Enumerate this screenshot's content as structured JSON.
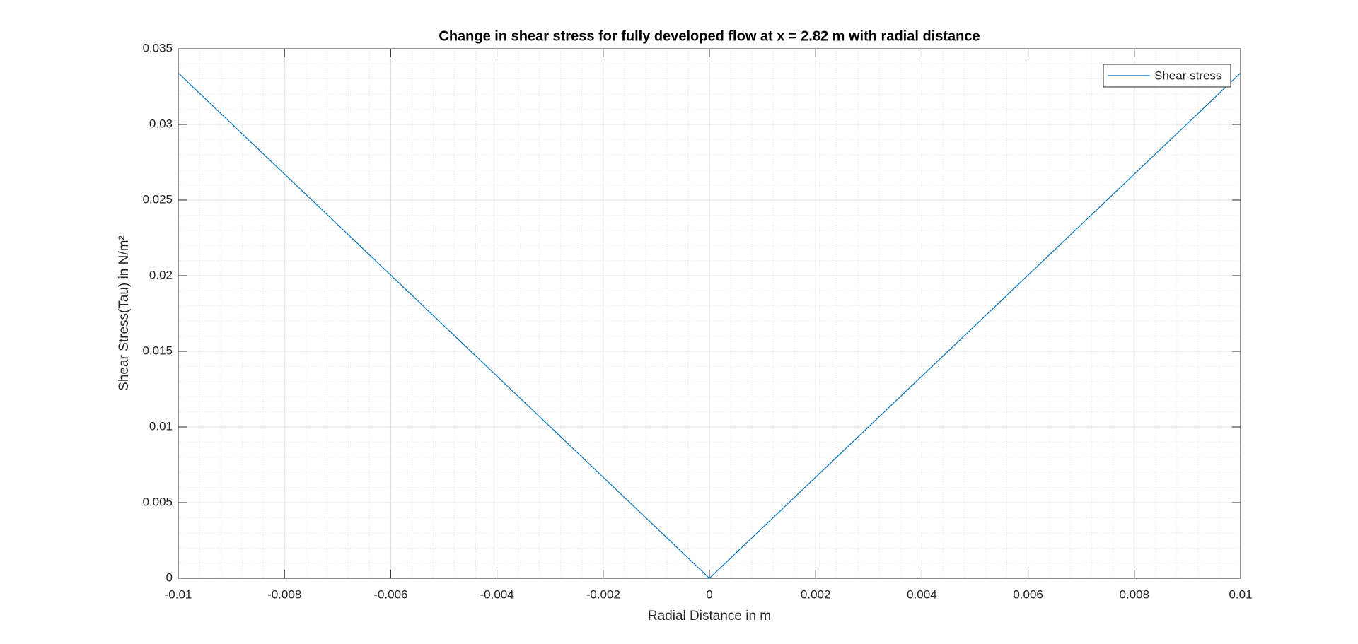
{
  "chart_data": {
    "type": "line",
    "title": "Change in shear stress for fully developed flow at x = 2.82 m with radial distance",
    "xlabel": "Radial Distance in m",
    "ylabel": "Shear Stress(Tau) in N/m²",
    "x": [
      -0.01,
      0,
      0.01
    ],
    "series": [
      {
        "name": "Shear stress",
        "color": "#0072bd",
        "values": [
          0.0334,
          0,
          0.0334
        ]
      }
    ],
    "xlim": [
      -0.01,
      0.01
    ],
    "xticks": [
      -0.01,
      -0.008,
      -0.006,
      -0.004,
      -0.002,
      0,
      0.002,
      0.004,
      0.006,
      0.008,
      0.01
    ],
    "ylim": [
      0,
      0.035
    ],
    "yticks": [
      0,
      0.005,
      0.01,
      0.015,
      0.02,
      0.025,
      0.03,
      0.035
    ],
    "grid": true,
    "minor_grid": true,
    "legend": "northeast"
  }
}
